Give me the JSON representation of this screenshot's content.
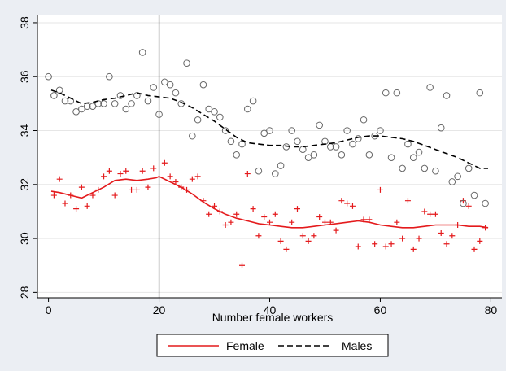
{
  "chart_data": {
    "type": "scatter",
    "title": "",
    "xlabel": "Number female workers",
    "ylabel": "",
    "xlim": [
      -2,
      82
    ],
    "ylim": [
      27.8,
      38.3
    ],
    "xticks": [
      0,
      20,
      40,
      60,
      80
    ],
    "yticks": [
      28,
      30,
      32,
      34,
      36,
      38
    ],
    "grid": "horizontal",
    "vertical_reference_line": 20,
    "legend_position": "bottom",
    "series": [
      {
        "name": "Female",
        "marker": "plus",
        "color": "#e41a1c",
        "fit_style": "solid",
        "points": [
          [
            1,
            31.6
          ],
          [
            2,
            32.2
          ],
          [
            3,
            31.3
          ],
          [
            4,
            31.6
          ],
          [
            5,
            31.1
          ],
          [
            6,
            31.9
          ],
          [
            7,
            31.2
          ],
          [
            8,
            31.6
          ],
          [
            9,
            31.8
          ],
          [
            10,
            32.3
          ],
          [
            11,
            32.5
          ],
          [
            12,
            31.6
          ],
          [
            13,
            32.4
          ],
          [
            14,
            32.5
          ],
          [
            15,
            31.8
          ],
          [
            16,
            31.8
          ],
          [
            17,
            32.5
          ],
          [
            18,
            31.9
          ],
          [
            19,
            32.6
          ],
          [
            21,
            32.8
          ],
          [
            22,
            32.3
          ],
          [
            23,
            32.1
          ],
          [
            24,
            31.9
          ],
          [
            25,
            31.8
          ],
          [
            26,
            32.2
          ],
          [
            27,
            32.3
          ],
          [
            28,
            31.4
          ],
          [
            29,
            30.9
          ],
          [
            30,
            31.2
          ],
          [
            31,
            31.0
          ],
          [
            32,
            30.5
          ],
          [
            33,
            30.6
          ],
          [
            34,
            30.9
          ],
          [
            35,
            29.0
          ],
          [
            36,
            32.4
          ],
          [
            37,
            31.1
          ],
          [
            38,
            30.1
          ],
          [
            39,
            30.8
          ],
          [
            40,
            30.6
          ],
          [
            41,
            30.9
          ],
          [
            42,
            29.9
          ],
          [
            43,
            29.6
          ],
          [
            44,
            30.6
          ],
          [
            45,
            31.1
          ],
          [
            46,
            30.1
          ],
          [
            47,
            29.9
          ],
          [
            48,
            30.1
          ],
          [
            49,
            30.8
          ],
          [
            50,
            30.6
          ],
          [
            51,
            30.6
          ],
          [
            52,
            30.3
          ],
          [
            53,
            31.4
          ],
          [
            54,
            31.3
          ],
          [
            55,
            31.2
          ],
          [
            56,
            29.7
          ],
          [
            57,
            30.7
          ],
          [
            58,
            30.7
          ],
          [
            59,
            29.8
          ],
          [
            60,
            31.8
          ],
          [
            61,
            29.7
          ],
          [
            62,
            29.8
          ],
          [
            63,
            30.6
          ],
          [
            64,
            30.0
          ],
          [
            65,
            31.4
          ],
          [
            66,
            29.6
          ],
          [
            67,
            30.0
          ],
          [
            68,
            31.0
          ],
          [
            69,
            30.9
          ],
          [
            70,
            30.9
          ],
          [
            71,
            30.2
          ],
          [
            72,
            29.8
          ],
          [
            73,
            30.1
          ],
          [
            74,
            30.5
          ],
          [
            75,
            31.4
          ],
          [
            76,
            31.2
          ],
          [
            77,
            29.6
          ],
          [
            78,
            29.9
          ],
          [
            79,
            30.4
          ]
        ],
        "fit": [
          [
            0.5,
            31.75
          ],
          [
            2,
            31.7
          ],
          [
            4,
            31.6
          ],
          [
            6,
            31.5
          ],
          [
            8,
            31.7
          ],
          [
            10,
            31.9
          ],
          [
            12,
            32.15
          ],
          [
            14,
            32.2
          ],
          [
            16,
            32.15
          ],
          [
            18,
            32.2
          ],
          [
            19.5,
            32.25
          ],
          [
            20,
            32.3
          ],
          [
            22,
            32.1
          ],
          [
            24,
            31.9
          ],
          [
            26,
            31.65
          ],
          [
            28,
            31.35
          ],
          [
            30,
            31.1
          ],
          [
            32,
            30.9
          ],
          [
            34,
            30.75
          ],
          [
            36,
            30.65
          ],
          [
            38,
            30.55
          ],
          [
            40,
            30.5
          ],
          [
            42,
            30.45
          ],
          [
            44,
            30.4
          ],
          [
            46,
            30.4
          ],
          [
            48,
            30.45
          ],
          [
            50,
            30.5
          ],
          [
            52,
            30.55
          ],
          [
            54,
            30.6
          ],
          [
            56,
            30.65
          ],
          [
            58,
            30.6
          ],
          [
            60,
            30.5
          ],
          [
            62,
            30.45
          ],
          [
            64,
            30.4
          ],
          [
            66,
            30.4
          ],
          [
            68,
            30.45
          ],
          [
            70,
            30.5
          ],
          [
            72,
            30.5
          ],
          [
            74,
            30.5
          ],
          [
            76,
            30.45
          ],
          [
            78,
            30.45
          ],
          [
            79.5,
            30.4
          ]
        ]
      },
      {
        "name": "Males",
        "marker": "circle",
        "color": "#000000",
        "fit_style": "dashed",
        "points": [
          [
            0,
            36.0
          ],
          [
            1,
            35.3
          ],
          [
            2,
            35.5
          ],
          [
            3,
            35.1
          ],
          [
            4,
            35.1
          ],
          [
            5,
            34.7
          ],
          [
            6,
            34.8
          ],
          [
            7,
            34.9
          ],
          [
            8,
            34.9
          ],
          [
            9,
            35.0
          ],
          [
            10,
            35.0
          ],
          [
            11,
            36.0
          ],
          [
            12,
            35.0
          ],
          [
            13,
            35.3
          ],
          [
            14,
            34.8
          ],
          [
            15,
            35.0
          ],
          [
            16,
            35.3
          ],
          [
            17,
            36.9
          ],
          [
            18,
            35.1
          ],
          [
            19,
            35.6
          ],
          [
            20,
            34.6
          ],
          [
            21,
            35.8
          ],
          [
            22,
            35.7
          ],
          [
            23,
            35.4
          ],
          [
            24,
            35.0
          ],
          [
            25,
            36.5
          ],
          [
            26,
            33.8
          ],
          [
            27,
            34.4
          ],
          [
            28,
            35.7
          ],
          [
            29,
            34.8
          ],
          [
            30,
            34.7
          ],
          [
            31,
            34.5
          ],
          [
            32,
            34.0
          ],
          [
            33,
            33.6
          ],
          [
            34,
            33.1
          ],
          [
            35,
            33.5
          ],
          [
            36,
            34.8
          ],
          [
            37,
            35.1
          ],
          [
            38,
            32.5
          ],
          [
            39,
            33.9
          ],
          [
            40,
            34.0
          ],
          [
            41,
            32.4
          ],
          [
            42,
            32.7
          ],
          [
            43,
            33.4
          ],
          [
            44,
            34.0
          ],
          [
            45,
            33.6
          ],
          [
            46,
            33.3
          ],
          [
            47,
            33.0
          ],
          [
            48,
            33.1
          ],
          [
            49,
            34.2
          ],
          [
            50,
            33.6
          ],
          [
            51,
            33.4
          ],
          [
            52,
            33.4
          ],
          [
            53,
            33.1
          ],
          [
            54,
            34.0
          ],
          [
            55,
            33.5
          ],
          [
            56,
            33.7
          ],
          [
            57,
            34.4
          ],
          [
            58,
            33.1
          ],
          [
            59,
            33.8
          ],
          [
            60,
            34.0
          ],
          [
            61,
            35.4
          ],
          [
            62,
            33.0
          ],
          [
            63,
            35.4
          ],
          [
            64,
            32.6
          ],
          [
            65,
            33.5
          ],
          [
            66,
            33.0
          ],
          [
            67,
            33.2
          ],
          [
            68,
            32.6
          ],
          [
            69,
            35.6
          ],
          [
            70,
            32.5
          ],
          [
            71,
            34.1
          ],
          [
            72,
            35.3
          ],
          [
            73,
            32.1
          ],
          [
            74,
            32.3
          ],
          [
            75,
            31.3
          ],
          [
            76,
            32.6
          ],
          [
            77,
            31.6
          ],
          [
            78,
            35.4
          ],
          [
            79,
            31.3
          ]
        ],
        "fit": [
          [
            0.5,
            35.5
          ],
          [
            2,
            35.4
          ],
          [
            4,
            35.2
          ],
          [
            6,
            35.0
          ],
          [
            8,
            35.05
          ],
          [
            10,
            35.15
          ],
          [
            12,
            35.2
          ],
          [
            14,
            35.3
          ],
          [
            16,
            35.4
          ],
          [
            18,
            35.3
          ],
          [
            20,
            35.25
          ],
          [
            22,
            35.2
          ],
          [
            24,
            35.05
          ],
          [
            26,
            34.85
          ],
          [
            28,
            34.6
          ],
          [
            30,
            34.35
          ],
          [
            32,
            34.05
          ],
          [
            34,
            33.75
          ],
          [
            36,
            33.55
          ],
          [
            38,
            33.5
          ],
          [
            40,
            33.45
          ],
          [
            42,
            33.45
          ],
          [
            44,
            33.4
          ],
          [
            46,
            33.4
          ],
          [
            48,
            33.45
          ],
          [
            50,
            33.5
          ],
          [
            52,
            33.55
          ],
          [
            54,
            33.65
          ],
          [
            56,
            33.75
          ],
          [
            58,
            33.8
          ],
          [
            60,
            33.8
          ],
          [
            62,
            33.75
          ],
          [
            64,
            33.7
          ],
          [
            66,
            33.6
          ],
          [
            68,
            33.45
          ],
          [
            70,
            33.3
          ],
          [
            72,
            33.15
          ],
          [
            74,
            33.0
          ],
          [
            76,
            32.8
          ],
          [
            78,
            32.6
          ],
          [
            79.5,
            32.6
          ]
        ]
      }
    ]
  }
}
